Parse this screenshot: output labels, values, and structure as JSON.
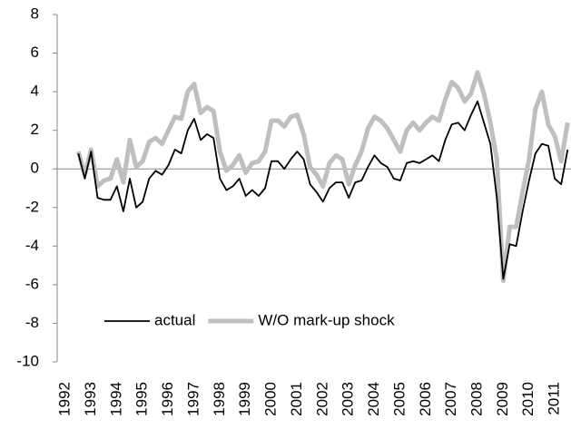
{
  "chart_data": {
    "type": "line",
    "x": [
      1992.5,
      1992.75,
      1993,
      1993.25,
      1993.5,
      1993.75,
      1994,
      1994.25,
      1994.5,
      1994.75,
      1995,
      1995.25,
      1995.5,
      1995.75,
      1996,
      1996.25,
      1996.5,
      1996.75,
      1997,
      1997.25,
      1997.5,
      1997.75,
      1998,
      1998.25,
      1998.5,
      1998.75,
      1999,
      1999.25,
      1999.5,
      1999.75,
      2000,
      2000.25,
      2000.5,
      2000.75,
      2001,
      2001.25,
      2001.5,
      2001.75,
      2002,
      2002.25,
      2002.5,
      2002.75,
      2003,
      2003.25,
      2003.5,
      2003.75,
      2004,
      2004.25,
      2004.5,
      2004.75,
      2005,
      2005.25,
      2005.5,
      2005.75,
      2006,
      2006.25,
      2006.5,
      2006.75,
      2007,
      2007.25,
      2007.5,
      2007.75,
      2008,
      2008.25,
      2008.5,
      2008.75,
      2009,
      2009.25,
      2009.5,
      2009.75,
      2010,
      2010.25,
      2010.5,
      2010.75,
      2011,
      2011.25,
      2011.5
    ],
    "series": [
      {
        "name": "actual",
        "color": "#000000",
        "values": [
          0.8,
          -0.5,
          0.9,
          -1.5,
          -1.6,
          -1.6,
          -0.9,
          -2.2,
          -0.5,
          -2.0,
          -1.7,
          -0.5,
          -0.1,
          -0.3,
          0.2,
          1.0,
          0.8,
          2.0,
          2.6,
          1.5,
          1.8,
          1.6,
          -0.5,
          -1.1,
          -0.9,
          -0.5,
          -1.4,
          -1.1,
          -1.4,
          -1.0,
          0.4,
          0.4,
          0.0,
          0.5,
          0.9,
          0.5,
          -0.8,
          -1.2,
          -1.7,
          -1.0,
          -0.7,
          -0.7,
          -1.5,
          -0.7,
          -0.6,
          0.1,
          0.7,
          0.3,
          0.1,
          -0.5,
          -0.6,
          0.3,
          0.4,
          0.3,
          0.5,
          0.7,
          0.4,
          1.5,
          2.3,
          2.4,
          2.0,
          2.8,
          3.5,
          2.4,
          1.3,
          -1.5,
          -5.7,
          -3.9,
          -4.0,
          -2.2,
          -0.6,
          0.8,
          1.3,
          1.2,
          -0.5,
          -0.8,
          1.0
        ]
      },
      {
        "name": "W/O mark-up shock",
        "color": "#bfbfbf",
        "values": [
          0.9,
          -0.3,
          1.0,
          -0.9,
          -0.6,
          -0.5,
          0.5,
          -0.7,
          1.5,
          0.1,
          0.4,
          1.4,
          1.6,
          1.3,
          2.0,
          2.7,
          2.6,
          4.0,
          4.4,
          2.9,
          3.2,
          3.0,
          0.9,
          -0.1,
          0.2,
          0.7,
          -0.2,
          0.3,
          0.4,
          0.9,
          2.5,
          2.5,
          2.2,
          2.7,
          2.8,
          1.8,
          0.1,
          -0.3,
          -0.9,
          0.3,
          0.7,
          0.5,
          -0.8,
          0.2,
          0.9,
          2.1,
          2.7,
          2.5,
          2.1,
          1.5,
          0.9,
          2.0,
          2.4,
          2.0,
          2.4,
          2.7,
          2.5,
          3.6,
          4.5,
          4.2,
          3.5,
          3.9,
          5.0,
          3.9,
          2.4,
          0.5,
          -5.8,
          -3.0,
          -3.0,
          -1.2,
          0.5,
          3.1,
          4.0,
          2.3,
          1.7,
          0.4,
          2.4
        ]
      }
    ],
    "xlim": [
      1991.68,
      2011.63
    ],
    "xticks": [
      1992,
      1993,
      1994,
      1995,
      1996,
      1997,
      1998,
      1999,
      2000,
      2001,
      2002,
      2003,
      2004,
      2005,
      2006,
      2007,
      2008,
      2009,
      2010,
      2011
    ],
    "ylim": [
      -10,
      8
    ],
    "yticks": [
      -10,
      -8,
      -6,
      -4,
      -2,
      0,
      2,
      4,
      6,
      8
    ]
  }
}
